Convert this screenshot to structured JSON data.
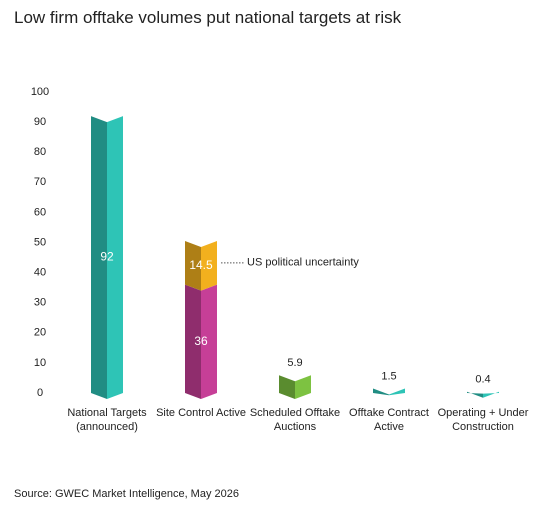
{
  "chart_data": {
    "type": "bar",
    "title": "Low firm offtake volumes put national targets at risk",
    "source": "Source: GWEC Market Intelligence, May 2026",
    "categories": [
      "National Targets\n(announced)",
      "Site Control Active",
      "Scheduled Offtake\nAuctions",
      "Offtake Contract\nActive",
      "Operating + Under\nConstruction"
    ],
    "series": [
      {
        "values": [
          92,
          36,
          5.9,
          1.5,
          0.4
        ],
        "colors": [
          "#2ec4b6",
          "#c63f97",
          "#7dc241",
          "#2ec4b6",
          "#2ec4b6"
        ]
      },
      {
        "values": [
          null,
          14.5,
          null,
          null,
          null
        ],
        "color": "#f2b01e"
      }
    ],
    "annotation": {
      "text": "US political uncertainty",
      "series": 1,
      "index": 1
    },
    "ylim": [
      0,
      100
    ],
    "yticks": [
      0,
      10,
      20,
      30,
      40,
      50,
      60,
      70,
      80,
      90,
      100
    ],
    "grid": false
  }
}
